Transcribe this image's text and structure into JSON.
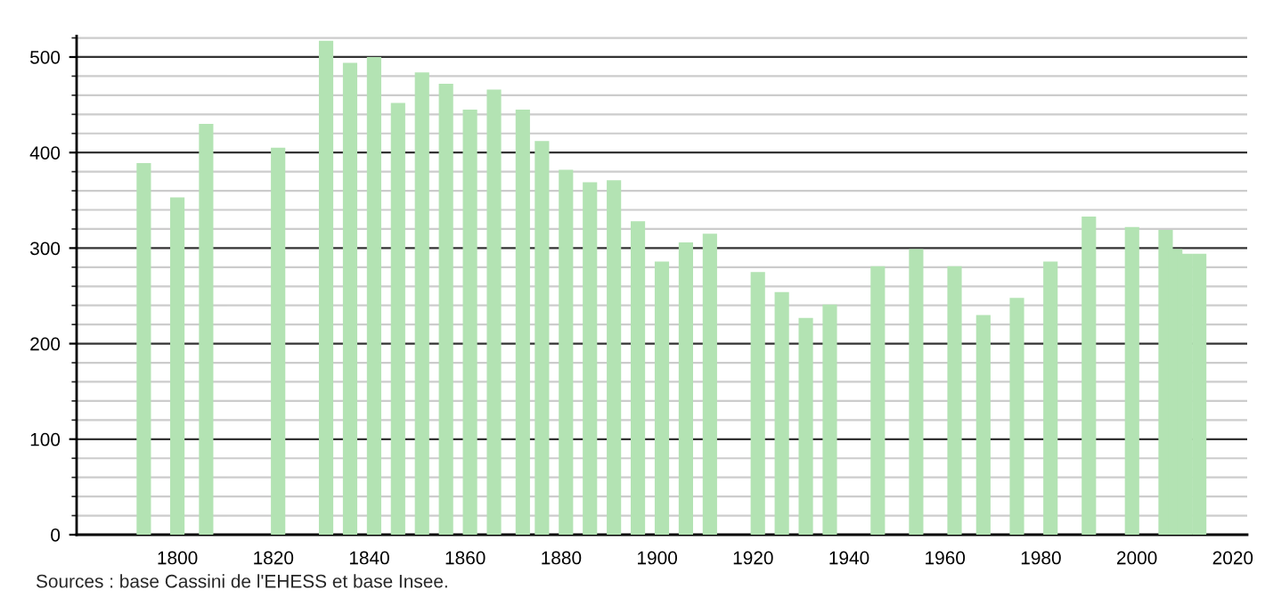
{
  "chart_data": {
    "type": "bar",
    "x": [
      1793,
      1800,
      1806,
      1821,
      1831,
      1836,
      1841,
      1846,
      1851,
      1856,
      1861,
      1866,
      1872,
      1876,
      1881,
      1886,
      1891,
      1896,
      1901,
      1906,
      1911,
      1921,
      1926,
      1931,
      1936,
      1946,
      1954,
      1962,
      1968,
      1975,
      1982,
      1990,
      1999,
      2006,
      2008,
      2010,
      2013
    ],
    "values": [
      389,
      353,
      430,
      405,
      517,
      494,
      500,
      452,
      484,
      472,
      445,
      466,
      445,
      412,
      382,
      369,
      371,
      328,
      286,
      306,
      315,
      275,
      254,
      227,
      241,
      281,
      299,
      281,
      230,
      248,
      286,
      333,
      322,
      319,
      299,
      294,
      294
    ],
    "color": "#b3e3b3",
    "xlim": [
      1779,
      2023
    ],
    "xticks": [
      1800,
      1820,
      1840,
      1860,
      1880,
      1900,
      1920,
      1940,
      1960,
      1980,
      2000,
      2020
    ],
    "ylim": [
      0,
      522
    ],
    "yticks": [
      0,
      100,
      200,
      300,
      400,
      500
    ],
    "grid": "y",
    "annotations": [
      "Sources : base Cassini de l'EHESS et base Insee."
    ]
  }
}
